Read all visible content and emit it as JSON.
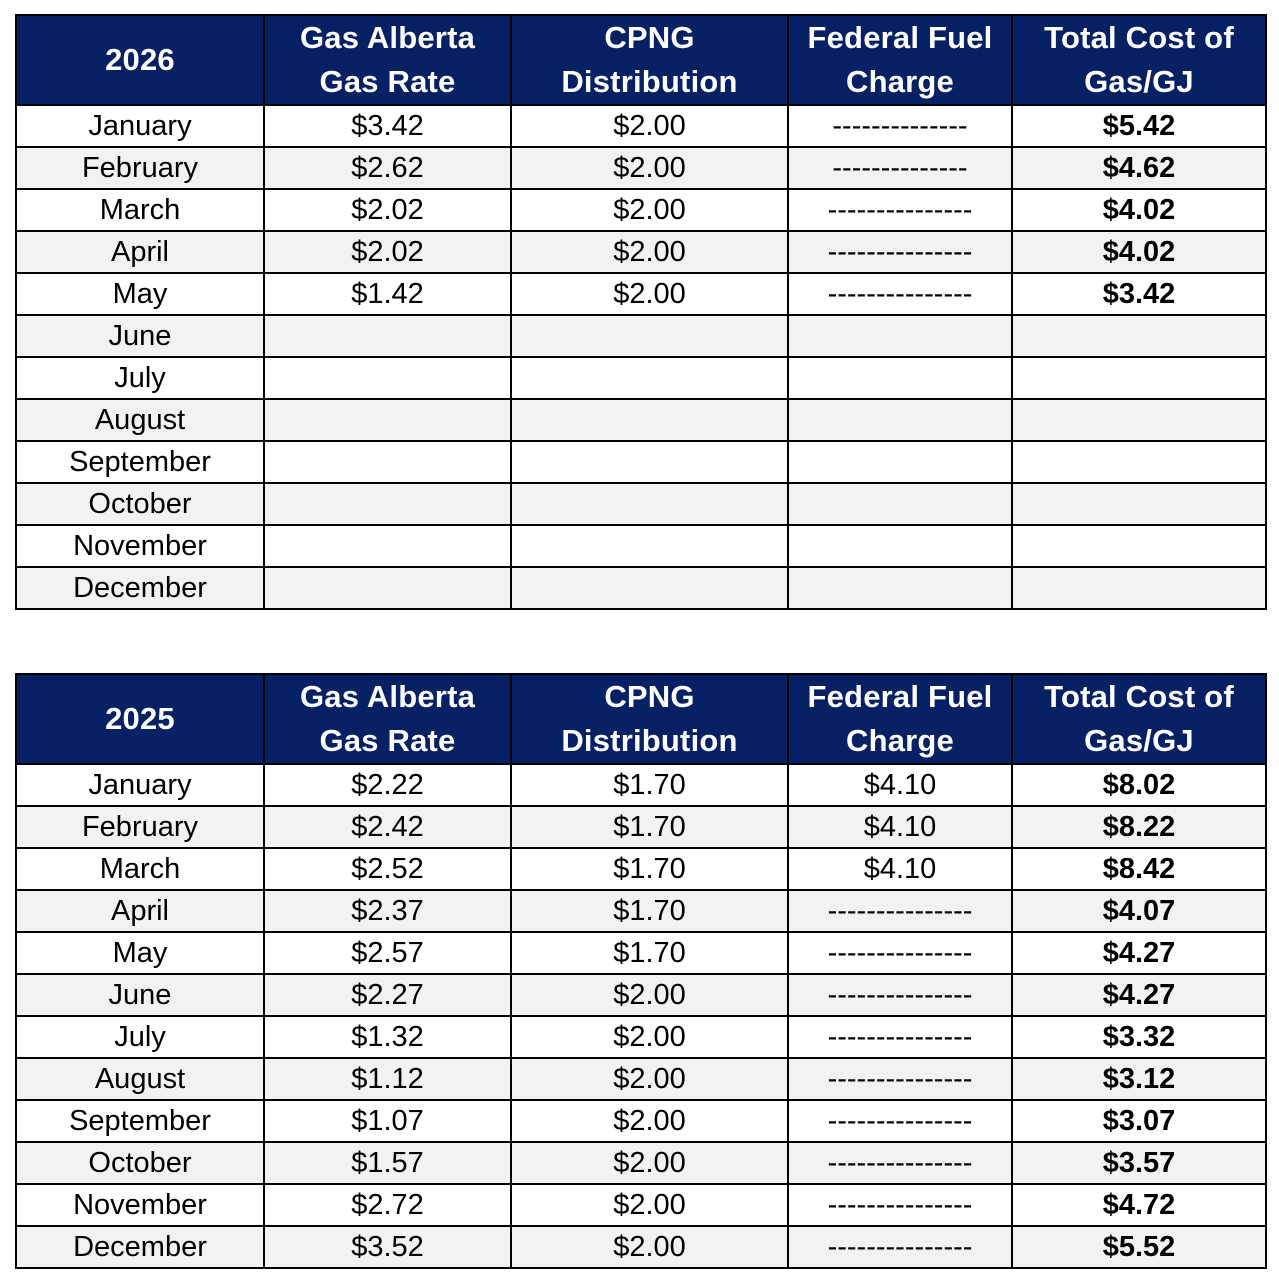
{
  "tables": [
    {
      "year": "2026",
      "headers": {
        "gas_alberta_rate": "Gas Alberta Gas Rate",
        "cpng_distribution": "CPNG Distribution",
        "federal_fuel_charge": "Federal Fuel Charge",
        "total_cost": "Total Cost of Gas/GJ"
      },
      "rows": [
        {
          "month": "January",
          "gas_rate": "$3.42",
          "distribution": "$2.00",
          "fuel_charge": "--------------",
          "total": "$5.42"
        },
        {
          "month": "February",
          "gas_rate": "$2.62",
          "distribution": "$2.00",
          "fuel_charge": "--------------",
          "total": "$4.62"
        },
        {
          "month": "March",
          "gas_rate": "$2.02",
          "distribution": "$2.00",
          "fuel_charge": "---------------",
          "total": "$4.02"
        },
        {
          "month": "April",
          "gas_rate": "$2.02",
          "distribution": "$2.00",
          "fuel_charge": "---------------",
          "total": "$4.02"
        },
        {
          "month": "May",
          "gas_rate": "$1.42",
          "distribution": "$2.00",
          "fuel_charge": "---------------",
          "total": "$3.42"
        },
        {
          "month": "June",
          "gas_rate": "",
          "distribution": "",
          "fuel_charge": "",
          "total": ""
        },
        {
          "month": "July",
          "gas_rate": "",
          "distribution": "",
          "fuel_charge": "",
          "total": ""
        },
        {
          "month": "August",
          "gas_rate": "",
          "distribution": "",
          "fuel_charge": "",
          "total": ""
        },
        {
          "month": "September",
          "gas_rate": "",
          "distribution": "",
          "fuel_charge": "",
          "total": ""
        },
        {
          "month": "October",
          "gas_rate": "",
          "distribution": "",
          "fuel_charge": "",
          "total": ""
        },
        {
          "month": "November",
          "gas_rate": "",
          "distribution": "",
          "fuel_charge": "",
          "total": ""
        },
        {
          "month": "December",
          "gas_rate": "",
          "distribution": "",
          "fuel_charge": "",
          "total": ""
        }
      ]
    },
    {
      "year": "2025",
      "headers": {
        "gas_alberta_rate": "Gas Alberta Gas Rate",
        "cpng_distribution": "CPNG Distribution",
        "federal_fuel_charge": "Federal Fuel Charge",
        "total_cost": "Total Cost of Gas/GJ"
      },
      "rows": [
        {
          "month": "January",
          "gas_rate": "$2.22",
          "distribution": "$1.70",
          "fuel_charge": "$4.10",
          "total": "$8.02"
        },
        {
          "month": "February",
          "gas_rate": "$2.42",
          "distribution": "$1.70",
          "fuel_charge": "$4.10",
          "total": "$8.22"
        },
        {
          "month": "March",
          "gas_rate": "$2.52",
          "distribution": "$1.70",
          "fuel_charge": "$4.10",
          "total": "$8.42"
        },
        {
          "month": "April",
          "gas_rate": "$2.37",
          "distribution": "$1.70",
          "fuel_charge": "---------------",
          "total": "$4.07"
        },
        {
          "month": "May",
          "gas_rate": "$2.57",
          "distribution": "$1.70",
          "fuel_charge": "---------------",
          "total": "$4.27"
        },
        {
          "month": "June",
          "gas_rate": "$2.27",
          "distribution": "$2.00",
          "fuel_charge": "---------------",
          "total": "$4.27"
        },
        {
          "month": "July",
          "gas_rate": "$1.32",
          "distribution": "$2.00",
          "fuel_charge": "---------------",
          "total": "$3.32"
        },
        {
          "month": "August",
          "gas_rate": "$1.12",
          "distribution": "$2.00",
          "fuel_charge": "---------------",
          "total": "$3.12"
        },
        {
          "month": "September",
          "gas_rate": "$1.07",
          "distribution": "$2.00",
          "fuel_charge": "---------------",
          "total": "$3.07"
        },
        {
          "month": "October",
          "gas_rate": "$1.57",
          "distribution": "$2.00",
          "fuel_charge": "---------------",
          "total": "$3.57"
        },
        {
          "month": "November",
          "gas_rate": "$2.72",
          "distribution": "$2.00",
          "fuel_charge": "---------------",
          "total": "$4.72"
        },
        {
          "month": "December",
          "gas_rate": "$3.52",
          "distribution": "$2.00",
          "fuel_charge": "---------------",
          "total": "$5.52"
        }
      ]
    }
  ],
  "colors": {
    "header_background": "#062064",
    "header_text": "#ffffff",
    "row_alt_background": "#f2f2f2",
    "border": "#000000"
  }
}
